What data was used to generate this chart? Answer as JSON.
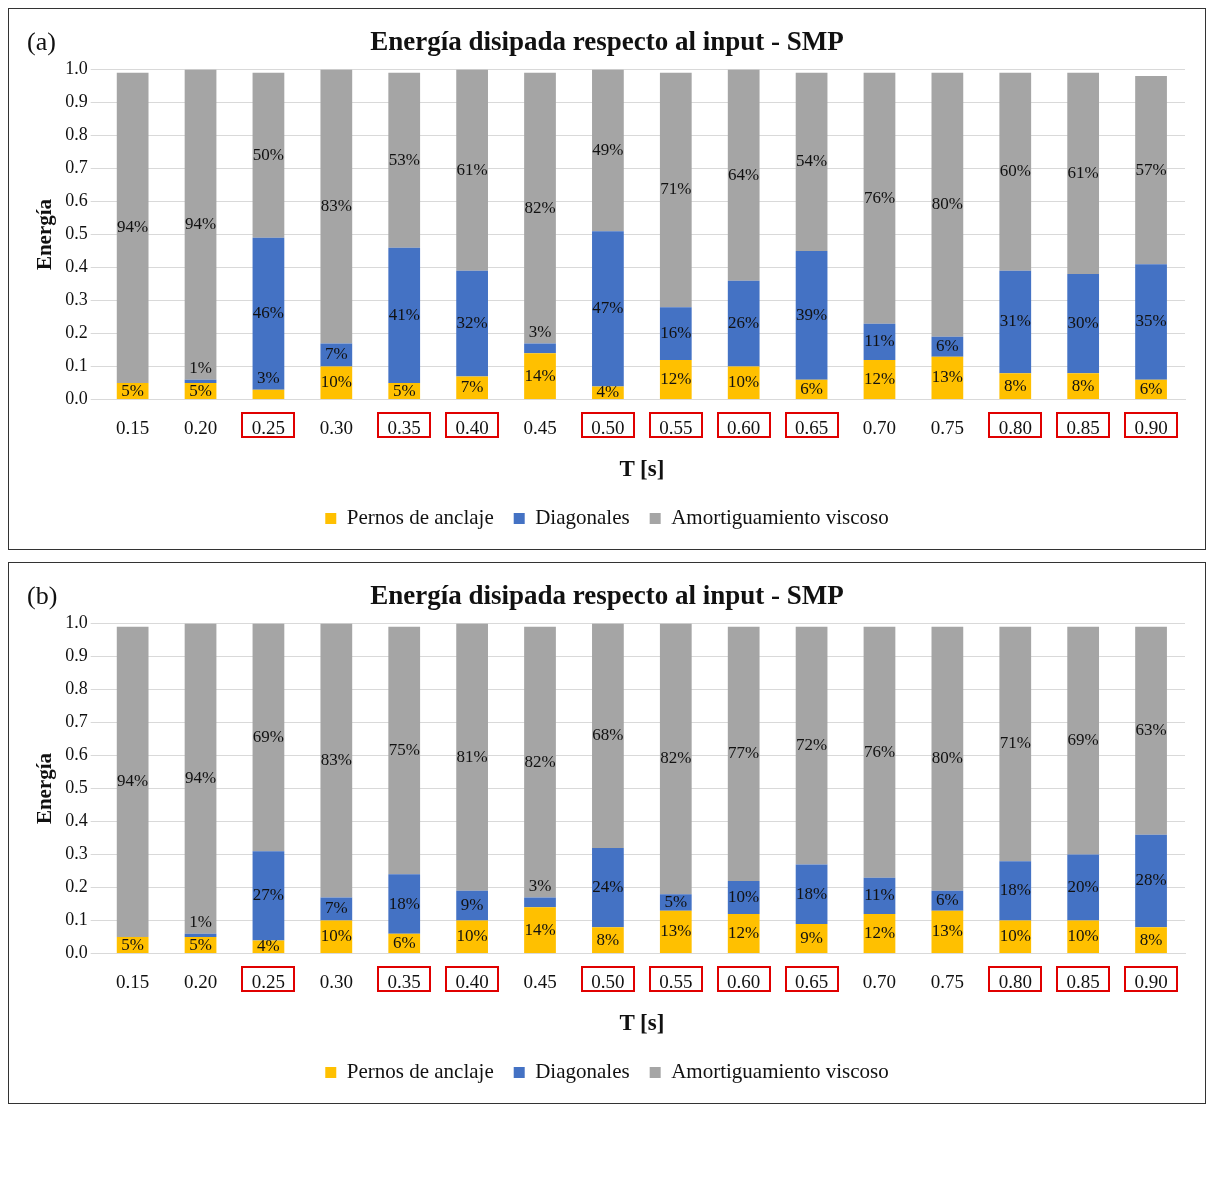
{
  "chart_data": [
    {
      "type": "bar",
      "title": "Energía disipada respecto al input - SMP",
      "xlabel": "T [s]",
      "ylabel": "Energía",
      "annotations": [
        "(a)"
      ],
      "stacked": true,
      "grid": "y",
      "legend": "bottom",
      "categories": [
        "0.15",
        "0.20",
        "0.25",
        "0.30",
        "0.35",
        "0.40",
        "0.45",
        "0.50",
        "0.55",
        "0.60",
        "0.65",
        "0.70",
        "0.75",
        "0.80",
        "0.85",
        "0.90"
      ],
      "ylim": [
        0,
        1
      ],
      "yticks": [
        {
          "value": 0,
          "label": "0.0"
        },
        {
          "value": 0.1,
          "label": "0.1"
        },
        {
          "value": 0.2,
          "label": "0.2"
        },
        {
          "value": 0.3,
          "label": "0.3"
        },
        {
          "value": 0.4,
          "label": "0.4"
        },
        {
          "value": 0.5,
          "label": "0.5"
        },
        {
          "value": 0.6,
          "label": "0.6"
        },
        {
          "value": 0.7,
          "label": "0.7"
        },
        {
          "value": 0.8,
          "label": "0.8"
        },
        {
          "value": 0.9,
          "label": "0.9"
        },
        {
          "value": 1,
          "label": "1.0"
        }
      ],
      "series": [
        {
          "name": "Pernos de anclaje",
          "color": "#ffc000",
          "values": [
            0.05,
            0.05,
            0.03,
            0.1,
            0.05,
            0.07,
            0.14,
            0.04,
            0.12,
            0.1,
            0.06,
            0.12,
            0.13,
            0.08,
            0.08,
            0.06
          ],
          "value_labels": [
            "5%",
            "5%",
            "3%",
            "10%",
            "5%",
            "7%",
            "14%",
            "4%",
            "12%",
            "10%",
            "6%",
            "12%",
            "13%",
            "8%",
            "8%",
            "6%"
          ]
        },
        {
          "name": "Diagonales",
          "color": "#4472c4",
          "values": [
            null,
            0.01,
            0.46,
            0.07,
            0.41,
            0.32,
            0.03,
            0.47,
            0.16,
            0.26,
            0.39,
            0.11,
            0.06,
            0.31,
            0.3,
            0.35
          ],
          "value_labels": [
            null,
            "1%",
            "46%",
            "7%",
            "41%",
            "32%",
            "3%",
            "47%",
            "16%",
            "26%",
            "39%",
            "11%",
            "6%",
            "31%",
            "30%",
            "35%"
          ]
        },
        {
          "name": "Amortiguamiento viscoso",
          "color": "#a5a5a5",
          "values": [
            0.94,
            0.94,
            0.5,
            0.83,
            0.53,
            0.61,
            0.82,
            0.49,
            0.71,
            0.64,
            0.54,
            0.76,
            0.8,
            0.6,
            0.61,
            0.57
          ],
          "value_labels": [
            "94%",
            "94%",
            "50%",
            "83%",
            "53%",
            "61%",
            "82%",
            "49%",
            "71%",
            "64%",
            "54%",
            "76%",
            "80%",
            "60%",
            "61%",
            "57%"
          ]
        }
      ]
    },
    {
      "type": "bar",
      "title": "Energía disipada respecto al input - SMP",
      "xlabel": "T [s]",
      "ylabel": "Energía",
      "annotations": [
        "(b)"
      ],
      "stacked": true,
      "grid": "y",
      "legend": "bottom",
      "categories": [
        "0.15",
        "0.20",
        "0.25",
        "0.30",
        "0.35",
        "0.40",
        "0.45",
        "0.50",
        "0.55",
        "0.60",
        "0.65",
        "0.70",
        "0.75",
        "0.80",
        "0.85",
        "0.90"
      ],
      "ylim": [
        0,
        1
      ],
      "yticks": [
        {
          "value": 0,
          "label": "0.0"
        },
        {
          "value": 0.1,
          "label": "0.1"
        },
        {
          "value": 0.2,
          "label": "0.2"
        },
        {
          "value": 0.3,
          "label": "0.3"
        },
        {
          "value": 0.4,
          "label": "0.4"
        },
        {
          "value": 0.5,
          "label": "0.5"
        },
        {
          "value": 0.6,
          "label": "0.6"
        },
        {
          "value": 0.7,
          "label": "0.7"
        },
        {
          "value": 0.8,
          "label": "0.8"
        },
        {
          "value": 0.9,
          "label": "0.9"
        },
        {
          "value": 1,
          "label": "1.0"
        }
      ],
      "series": [
        {
          "name": "Pernos de anclaje",
          "color": "#ffc000",
          "values": [
            0.05,
            0.05,
            0.04,
            0.1,
            0.06,
            0.1,
            0.14,
            0.08,
            0.13,
            0.12,
            0.09,
            0.12,
            0.13,
            0.1,
            0.1,
            0.08
          ],
          "value_labels": [
            "5%",
            "5%",
            "4%",
            "10%",
            "6%",
            "10%",
            "14%",
            "8%",
            "13%",
            "12%",
            "9%",
            "12%",
            "13%",
            "10%",
            "10%",
            "8%"
          ]
        },
        {
          "name": "Diagonales",
          "color": "#4472c4",
          "values": [
            null,
            0.01,
            0.27,
            0.07,
            0.18,
            0.09,
            0.03,
            0.24,
            0.05,
            0.1,
            0.18,
            0.11,
            0.06,
            0.18,
            0.2,
            0.28
          ],
          "value_labels": [
            null,
            "1%",
            "27%",
            "7%",
            "18%",
            "9%",
            "3%",
            "24%",
            "5%",
            "10%",
            "18%",
            "11%",
            "6%",
            "18%",
            "20%",
            "28%"
          ]
        },
        {
          "name": "Amortiguamiento viscoso",
          "color": "#a5a5a5",
          "values": [
            0.94,
            0.94,
            0.69,
            0.83,
            0.75,
            0.81,
            0.82,
            0.68,
            0.82,
            0.77,
            0.72,
            0.76,
            0.8,
            0.71,
            0.69,
            0.63
          ],
          "value_labels": [
            "94%",
            "94%",
            "69%",
            "83%",
            "75%",
            "81%",
            "82%",
            "68%",
            "82%",
            "77%",
            "72%",
            "76%",
            "80%",
            "71%",
            "69%",
            "63%"
          ]
        }
      ]
    }
  ]
}
